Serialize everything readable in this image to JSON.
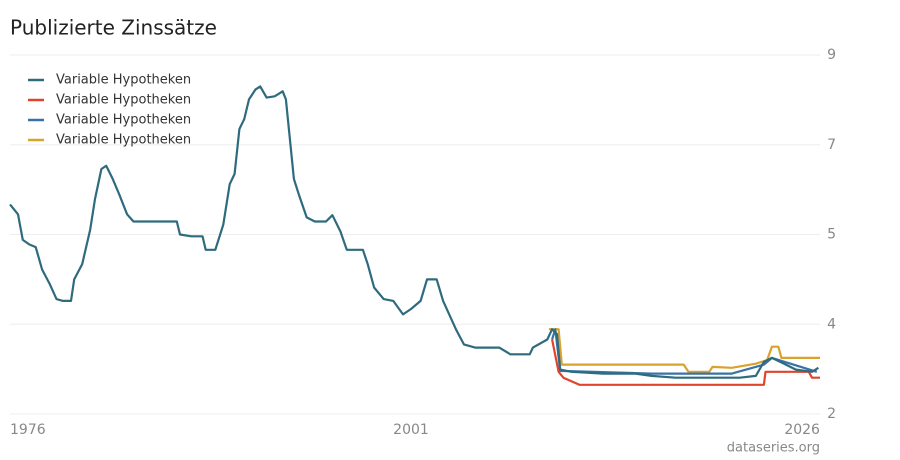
{
  "chart_data": {
    "type": "line",
    "title": "Publizierte Zinssätze",
    "source": "dataseries.org",
    "xlim": [
      1976,
      2026.5
    ],
    "xticks": [
      1976,
      2001,
      2026
    ],
    "ylim": [
      2,
      9
    ],
    "yticks": [
      9,
      7,
      5,
      4,
      2
    ],
    "grid": true,
    "legend": "top-left",
    "series": [
      {
        "name": "Variable Hypotheken",
        "color": "#2e6b7e",
        "x": [
          1976.0,
          1976.5,
          1976.8,
          1977.2,
          1977.6,
          1978.0,
          1978.5,
          1978.9,
          1979.3,
          1979.8,
          1980.0,
          1980.5,
          1981.0,
          1981.3,
          1981.7,
          1982.0,
          1982.4,
          1982.8,
          1983.3,
          1983.7,
          1985.0,
          1986.4,
          1986.6,
          1987.3,
          1988.0,
          1988.2,
          1988.8,
          1989.3,
          1989.7,
          1990.0,
          1990.3,
          1990.6,
          1990.9,
          1991.3,
          1991.6,
          1992.0,
          1992.5,
          1993.0,
          1993.2,
          1993.7,
          1994.0,
          1994.5,
          1995.0,
          1995.7,
          1996.1,
          1996.6,
          1997.0,
          1998.0,
          1998.3,
          1998.7,
          1999.3,
          1999.9,
          2000.5,
          2001.0,
          2001.6,
          2002.0,
          2002.6,
          2003.0,
          2003.8,
          2004.3,
          2005.0,
          2006.5,
          2007.2,
          2008.4,
          2008.6,
          2009.5,
          2009.8,
          2010.1,
          2010.3,
          2011.0,
          2013.0,
          2015.0,
          2016.0,
          2017.5,
          2019.5,
          2021.5,
          2022.5,
          2023.0,
          2023.5,
          2024.2,
          2025.0,
          2026.0,
          2026.4
        ],
        "values": [
          5.67,
          5.45,
          4.94,
          4.89,
          4.86,
          4.61,
          4.44,
          4.28,
          4.26,
          4.26,
          4.5,
          4.67,
          5.11,
          5.79,
          6.46,
          6.53,
          6.24,
          5.9,
          5.45,
          5.29,
          5.29,
          5.29,
          5.0,
          4.98,
          4.98,
          4.83,
          4.83,
          5.22,
          6.12,
          6.35,
          7.35,
          7.57,
          8.01,
          8.23,
          8.3,
          8.05,
          8.08,
          8.19,
          8.01,
          6.24,
          5.9,
          5.38,
          5.29,
          5.29,
          5.43,
          5.07,
          4.83,
          4.83,
          4.67,
          4.41,
          4.28,
          4.26,
          4.11,
          4.17,
          4.26,
          4.5,
          4.5,
          4.26,
          3.89,
          3.55,
          3.48,
          3.48,
          3.33,
          3.33,
          3.48,
          3.66,
          3.89,
          3.78,
          2.99,
          2.94,
          2.9,
          2.9,
          2.85,
          2.81,
          2.81,
          2.81,
          2.85,
          3.16,
          3.25,
          3.13,
          2.99,
          2.94,
          3.03
        ]
      },
      {
        "name": "Variable Hypotheken",
        "color": "#e0452c",
        "x": [
          2009.8,
          2010.2,
          2010.5,
          2011.5,
          2023.0,
          2023.1,
          2025.8,
          2026.0,
          2026.5
        ],
        "values": [
          3.66,
          2.94,
          2.81,
          2.65,
          2.65,
          2.94,
          2.94,
          2.81,
          2.81
        ]
      },
      {
        "name": "Variable Hypotheken",
        "color": "#3a72a8",
        "x": [
          2009.8,
          2010.0,
          2010.3,
          2016.0,
          2021.0,
          2023.0,
          2023.5,
          2026.3
        ],
        "values": [
          3.66,
          3.89,
          2.96,
          2.9,
          2.9,
          3.1,
          3.25,
          2.94
        ]
      },
      {
        "name": "Variable Hypotheken",
        "color": "#daa22c",
        "x": [
          2009.6,
          2010.2,
          2010.4,
          2018.0,
          2018.3,
          2019.6,
          2019.8,
          2021.0,
          2022.5,
          2023.2,
          2023.5,
          2023.9,
          2024.1,
          2026.5
        ],
        "values": [
          3.89,
          3.89,
          3.1,
          3.1,
          2.94,
          2.94,
          3.05,
          3.03,
          3.12,
          3.2,
          3.5,
          3.5,
          3.25,
          3.25
        ]
      }
    ]
  }
}
